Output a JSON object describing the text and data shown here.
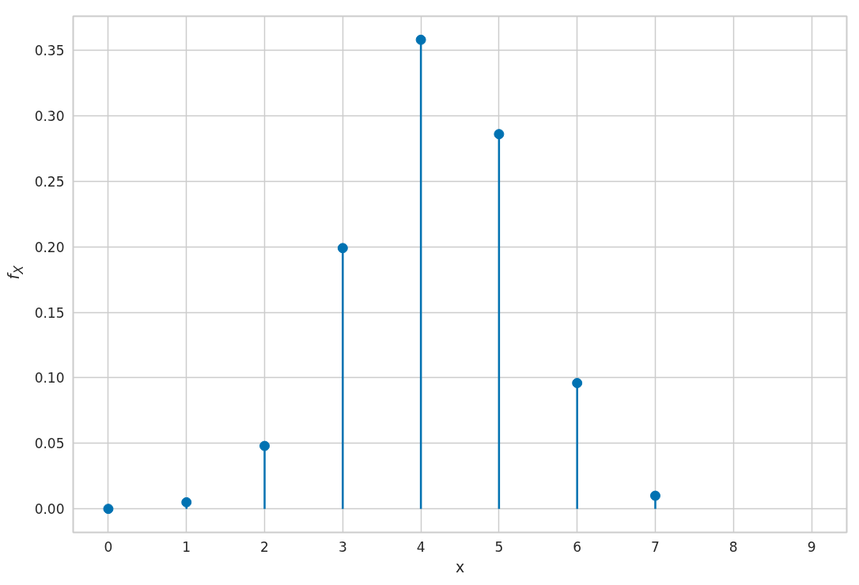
{
  "chart_data": {
    "type": "lollipop",
    "xlabel": "x",
    "ylabel": "f$_{X}$",
    "x": [
      0,
      1,
      2,
      3,
      4,
      5,
      6,
      7
    ],
    "values": [
      0.0,
      0.005,
      0.048,
      0.199,
      0.358,
      0.286,
      0.096,
      0.01
    ],
    "color": "#0072b2",
    "marker": "circle",
    "grid": true,
    "xlim": [
      -0.45,
      9.45
    ],
    "xticks": [
      0,
      1,
      2,
      3,
      4,
      5,
      6,
      7,
      8,
      9
    ],
    "ylim": [
      -0.018,
      0.376
    ],
    "yticks": [
      {
        "value": 0,
        "label": "0.00"
      },
      {
        "value": 0.05,
        "label": "0.05"
      },
      {
        "value": 0.1,
        "label": "0.10"
      },
      {
        "value": 0.15,
        "label": "0.15"
      },
      {
        "value": 0.2,
        "label": "0.20"
      },
      {
        "value": 0.25,
        "label": "0.25"
      },
      {
        "value": 0.3,
        "label": "0.30"
      },
      {
        "value": 0.35,
        "label": "0.35"
      }
    ]
  }
}
